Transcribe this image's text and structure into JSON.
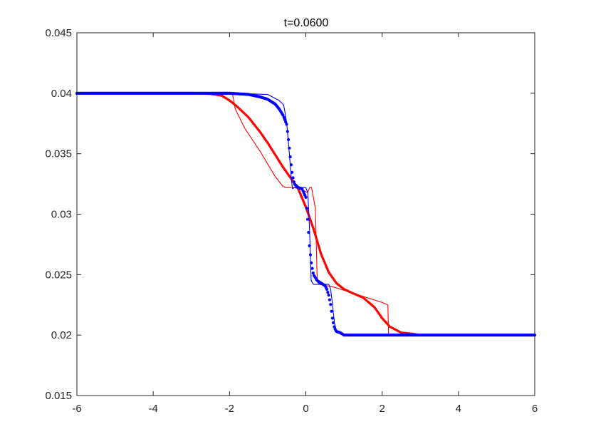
{
  "chart_data": {
    "type": "line",
    "title": "t=0.0600",
    "xlim": [
      -6,
      6
    ],
    "ylim": [
      0.015,
      0.045
    ],
    "xticks": [
      "-6",
      "-4",
      "-2",
      "0",
      "2",
      "4",
      "6"
    ],
    "yticks": [
      "0.015",
      "0.02",
      "0.025",
      "0.03",
      "0.035",
      "0.04",
      "0.045"
    ],
    "grid": false,
    "legend": "none",
    "series": [
      {
        "style": "thick",
        "color": "#ff0000",
        "x": [
          -6,
          -3,
          -2.5,
          -2.2,
          -2.0,
          -1.8,
          -1.5,
          -1.2,
          -1.0,
          -0.8,
          -0.6,
          -0.4,
          -0.2,
          0.0,
          0.2,
          0.4,
          0.6,
          0.8,
          1.0,
          1.2,
          1.5,
          1.8,
          2.0,
          2.2,
          2.5,
          2.8,
          3.0,
          6
        ],
        "y": [
          0.04,
          0.04,
          0.03995,
          0.0398,
          0.0394,
          0.0389,
          0.038,
          0.0368,
          0.0359,
          0.0349,
          0.0339,
          0.033,
          0.0321,
          0.0306,
          0.0288,
          0.0267,
          0.0252,
          0.0243,
          0.0238,
          0.0235,
          0.0231,
          0.0223,
          0.0214,
          0.0207,
          0.0202,
          0.0201,
          0.02,
          0.02
        ]
      },
      {
        "style": "thin",
        "color": "#ff0000",
        "x": [
          -6,
          -2.0,
          -1.92,
          -1.85,
          -1.6,
          -1.2,
          -0.8,
          -0.6,
          -0.5,
          -0.3,
          -0.1,
          0.05,
          0.1,
          0.15,
          0.25,
          0.3,
          0.35,
          0.5,
          0.7,
          1.0,
          1.5,
          2.0,
          2.15,
          2.17,
          6
        ],
        "y": [
          0.04,
          0.04,
          0.0399,
          0.0387,
          0.0371,
          0.0352,
          0.0331,
          0.0323,
          0.0322,
          0.0322,
          0.032,
          0.0318,
          0.0322,
          0.0322,
          0.0305,
          0.0244,
          0.0242,
          0.0241,
          0.024,
          0.0237,
          0.0232,
          0.0227,
          0.0225,
          0.02,
          0.02
        ]
      },
      {
        "style": "dots",
        "color": "#0000ff",
        "x": [
          -6,
          -2.0,
          -1.5,
          -1.2,
          -1.0,
          -0.8,
          -0.7,
          -0.6,
          -0.5,
          -0.45,
          -0.4,
          -0.35,
          -0.3,
          -0.2,
          -0.1,
          0.0,
          0.05,
          0.1,
          0.15,
          0.2,
          0.3,
          0.4,
          0.5,
          0.55,
          0.6,
          0.65,
          0.7,
          0.75,
          0.8,
          0.9,
          1.0,
          1.2,
          1.5,
          2.0,
          2.5,
          3.0,
          6
        ],
        "y": [
          0.04,
          0.04,
          0.0399,
          0.0397,
          0.0395,
          0.0391,
          0.0387,
          0.0382,
          0.0374,
          0.036,
          0.0345,
          0.0332,
          0.0325,
          0.0322,
          0.0321,
          0.0314,
          0.0295,
          0.0272,
          0.0258,
          0.025,
          0.0245,
          0.0243,
          0.0241,
          0.0238,
          0.0233,
          0.0225,
          0.0213,
          0.0206,
          0.0203,
          0.0202,
          0.02,
          0.02,
          0.02,
          0.02,
          0.02,
          0.02,
          0.02
        ]
      },
      {
        "style": "thin",
        "color": "#0000ff",
        "x": [
          -6,
          -2.0,
          -1.0,
          -0.7,
          -0.6,
          -0.58,
          -0.55,
          -0.5,
          -0.45,
          -0.4,
          -0.38,
          -0.35,
          -0.3,
          -0.2,
          -0.1,
          -0.05,
          0.0,
          0.05,
          0.08,
          0.1,
          0.12,
          0.14,
          0.2,
          0.3,
          0.4,
          0.5,
          0.6,
          0.65,
          0.7,
          0.75,
          0.8,
          1.0,
          6
        ],
        "y": [
          0.04,
          0.04,
          0.0399,
          0.0394,
          0.0391,
          0.039,
          0.0385,
          0.0375,
          0.0357,
          0.0338,
          0.0329,
          0.0321,
          0.0322,
          0.0322,
          0.0322,
          0.0322,
          0.0322,
          0.0318,
          0.03,
          0.0285,
          0.0265,
          0.0245,
          0.0242,
          0.0242,
          0.0242,
          0.0242,
          0.0242,
          0.0238,
          0.0225,
          0.021,
          0.0204,
          0.02,
          0.02
        ]
      }
    ]
  }
}
